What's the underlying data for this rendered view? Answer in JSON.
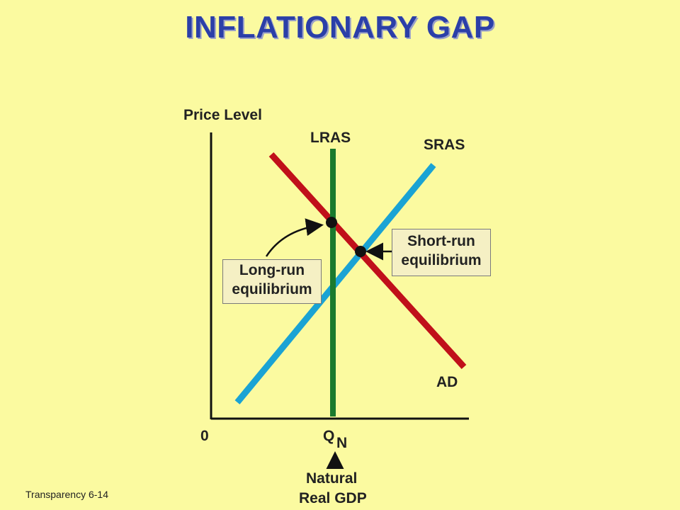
{
  "title": "INFLATIONARY GAP",
  "axes": {
    "y_label": "Price Level",
    "origin": "0",
    "x_tick_main": "Q",
    "x_tick_sub": "N"
  },
  "curves": {
    "lras": "LRAS",
    "sras": "SRAS",
    "ad": "AD"
  },
  "callouts": {
    "long_run_line1": "Long-run",
    "long_run_line2": "equilibrium",
    "short_run_line1": "Short-run",
    "short_run_line2": "equilibrium",
    "natural_line1": "Natural",
    "natural_line2": "Real GDP"
  },
  "footer": "Transparency 6-14",
  "colors": {
    "background": "#fbfaa0",
    "lras": "#1a7a2e",
    "sras": "#1aa3d4",
    "ad": "#c0101a",
    "title": "#2b3fa8"
  }
}
